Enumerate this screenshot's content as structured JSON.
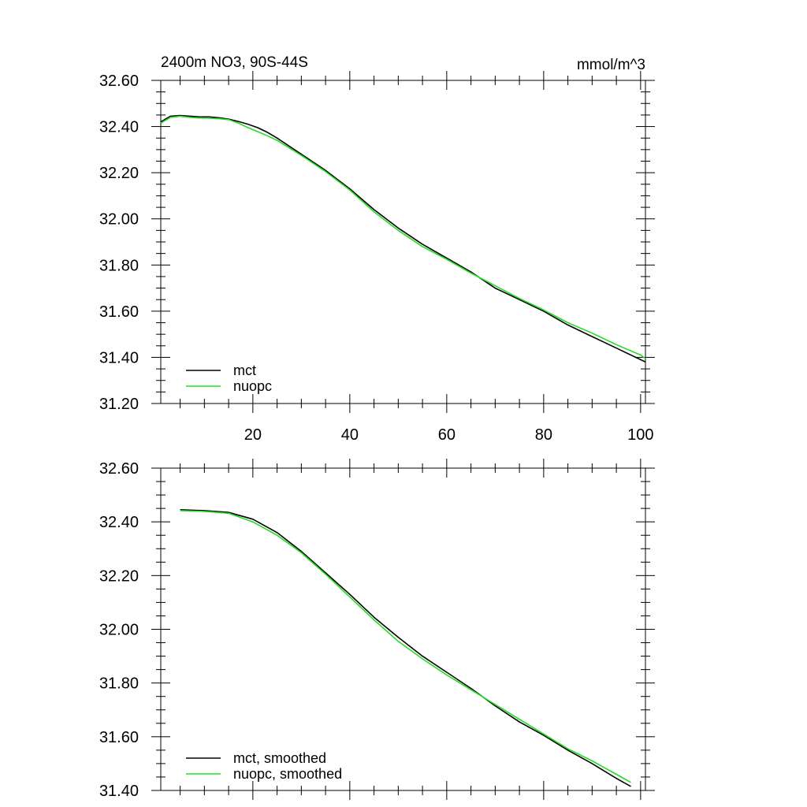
{
  "chart_data": [
    {
      "type": "line",
      "title": "2400m NO3, 90S-44S",
      "units": "mmol/m^3",
      "xlim": [
        1,
        101
      ],
      "ylim": [
        31.2,
        32.6
      ],
      "xticks": [
        20,
        40,
        60,
        80,
        100
      ],
      "xtick_labels": [
        "20",
        "40",
        "60",
        "80",
        "100"
      ],
      "yticks": [
        31.2,
        31.4,
        31.6,
        31.8,
        32.0,
        32.2,
        32.4,
        32.6
      ],
      "ytick_labels": [
        "31.20",
        "31.40",
        "31.60",
        "31.80",
        "32.00",
        "32.20",
        "32.40",
        "32.60"
      ],
      "legend_position": "bottom-left",
      "series": [
        {
          "name": "mct",
          "color": "#000000",
          "x": [
            1,
            3,
            5,
            7,
            9,
            11,
            13,
            15,
            17,
            19,
            21,
            23,
            25,
            30,
            35,
            40,
            45,
            50,
            55,
            60,
            65,
            70,
            75,
            80,
            85,
            90,
            95,
            100,
            101
          ],
          "values": [
            32.42,
            32.445,
            32.448,
            32.445,
            32.442,
            32.442,
            32.438,
            32.432,
            32.422,
            32.41,
            32.395,
            32.375,
            32.35,
            32.28,
            32.21,
            32.13,
            32.04,
            31.96,
            31.89,
            31.83,
            31.77,
            31.7,
            31.65,
            31.6,
            31.54,
            31.49,
            31.44,
            31.39,
            31.38
          ]
        },
        {
          "name": "nuopc",
          "color": "#22dd22",
          "x": [
            1,
            3,
            5,
            7,
            9,
            11,
            13,
            15,
            17,
            19,
            21,
            23,
            25,
            30,
            35,
            40,
            45,
            50,
            55,
            60,
            65,
            70,
            75,
            80,
            85,
            90,
            95,
            100,
            101
          ],
          "values": [
            32.415,
            32.44,
            32.445,
            32.44,
            32.437,
            32.436,
            32.434,
            32.43,
            32.415,
            32.395,
            32.378,
            32.36,
            32.34,
            32.275,
            32.205,
            32.125,
            32.03,
            31.95,
            31.88,
            31.825,
            31.765,
            31.71,
            31.655,
            31.605,
            31.55,
            31.505,
            31.455,
            31.41,
            31.395
          ]
        }
      ]
    },
    {
      "type": "line",
      "xlim": [
        1,
        101
      ],
      "ylim": [
        31.4,
        32.6
      ],
      "xticks": [
        20,
        40,
        60,
        80,
        100
      ],
      "yticks": [
        31.4,
        31.6,
        31.8,
        32.0,
        32.2,
        32.4,
        32.6
      ],
      "ytick_labels": [
        "31.40",
        "31.60",
        "31.80",
        "32.00",
        "32.20",
        "32.40",
        "32.60"
      ],
      "legend_position": "bottom-left",
      "series": [
        {
          "name": "mct, smoothed",
          "color": "#000000",
          "x": [
            5,
            10,
            15,
            20,
            25,
            30,
            35,
            40,
            45,
            50,
            55,
            60,
            65,
            70,
            75,
            80,
            85,
            90,
            95,
            98
          ],
          "values": [
            32.445,
            32.442,
            32.435,
            32.41,
            32.36,
            32.29,
            32.21,
            32.13,
            32.045,
            31.97,
            31.9,
            31.84,
            31.78,
            31.715,
            31.655,
            31.605,
            31.55,
            31.5,
            31.445,
            31.415
          ]
        },
        {
          "name": "nuopc, smoothed",
          "color": "#22dd22",
          "x": [
            5,
            10,
            15,
            20,
            25,
            30,
            35,
            40,
            45,
            50,
            55,
            60,
            65,
            70,
            75,
            80,
            85,
            90,
            95,
            98
          ],
          "values": [
            32.442,
            32.439,
            32.432,
            32.4,
            32.35,
            32.285,
            32.205,
            32.12,
            32.035,
            31.955,
            31.89,
            31.83,
            31.775,
            31.72,
            31.665,
            31.61,
            31.555,
            31.51,
            31.46,
            31.43
          ]
        }
      ]
    }
  ]
}
